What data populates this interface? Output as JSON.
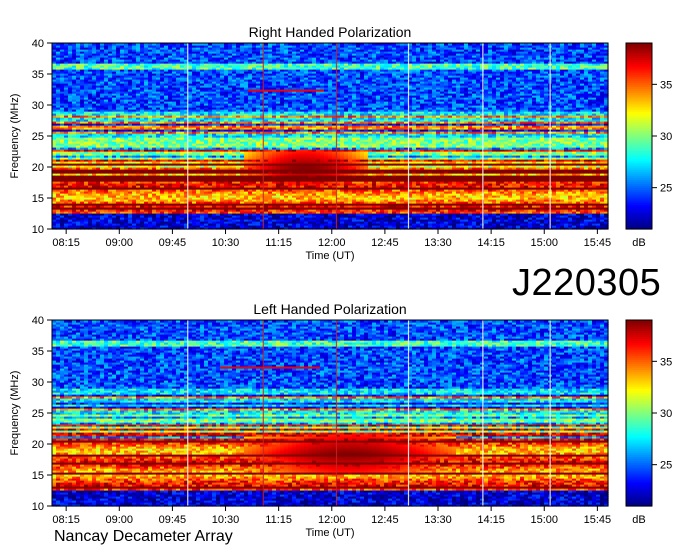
{
  "observation_id": "J220305",
  "instrument": "Nancay Decameter Array",
  "colorbar": {
    "unit_label": "dB",
    "ticks": [
      "25",
      "30",
      "35"
    ],
    "range": [
      21,
      39
    ],
    "colors": [
      "#00007f",
      "#0000ff",
      "#007fff",
      "#00ffff",
      "#7fff7f",
      "#ffff00",
      "#ff7f00",
      "#ff0000",
      "#7f0000"
    ]
  },
  "chart_data": [
    {
      "type": "heatmap",
      "title": "Right Handed Polarization",
      "xlabel": "Time (UT)",
      "ylabel": "Frequency (MHz)",
      "x_ticks": [
        "08:15",
        "09:00",
        "09:45",
        "10:30",
        "11:15",
        "12:00",
        "12:45",
        "13:30",
        "14:15",
        "15:00",
        "15:45"
      ],
      "y_ticks": [
        "10",
        "15",
        "20",
        "25",
        "30",
        "35",
        "40"
      ],
      "xlim": [
        "08:03",
        "15:54"
      ],
      "ylim": [
        10,
        40
      ],
      "z_unit": "dB",
      "zlim": [
        21,
        39
      ],
      "emission": [
        {
          "description": "intense band",
          "freq_range_MHz": [
            13,
            21
          ],
          "level_dB": 38
        },
        {
          "description": "enhanced arc",
          "time_range": [
            "10:45",
            "12:30"
          ],
          "freq_range_MHz": [
            17,
            23
          ],
          "level_dB": 39
        },
        {
          "description": "narrow line",
          "time_range": [
            "10:50",
            "11:55"
          ],
          "freq_MHz": 32.5,
          "level_dB": 37
        }
      ]
    },
    {
      "type": "heatmap",
      "title": "Left Handed Polarization",
      "xlabel": "Time (UT)",
      "ylabel": "Frequency (MHz)",
      "x_ticks": [
        "08:15",
        "09:00",
        "09:45",
        "10:30",
        "11:15",
        "12:00",
        "12:45",
        "13:30",
        "14:15",
        "15:00",
        "15:45"
      ],
      "y_ticks": [
        "10",
        "15",
        "20",
        "25",
        "30",
        "35",
        "40"
      ],
      "xlim": [
        "08:03",
        "15:54"
      ],
      "ylim": [
        10,
        40
      ],
      "z_unit": "dB",
      "zlim": [
        21,
        39
      ],
      "emission": [
        {
          "description": "intense band",
          "freq_range_MHz": [
            13,
            21
          ],
          "level_dB": 38
        },
        {
          "description": "enhanced arc",
          "time_range": [
            "10:45",
            "13:45"
          ],
          "freq_range_MHz": [
            15,
            22
          ],
          "level_dB": 39
        },
        {
          "description": "narrow line",
          "time_range": [
            "10:25",
            "11:50"
          ],
          "freq_MHz": 32.5,
          "level_dB": 37
        }
      ]
    }
  ]
}
